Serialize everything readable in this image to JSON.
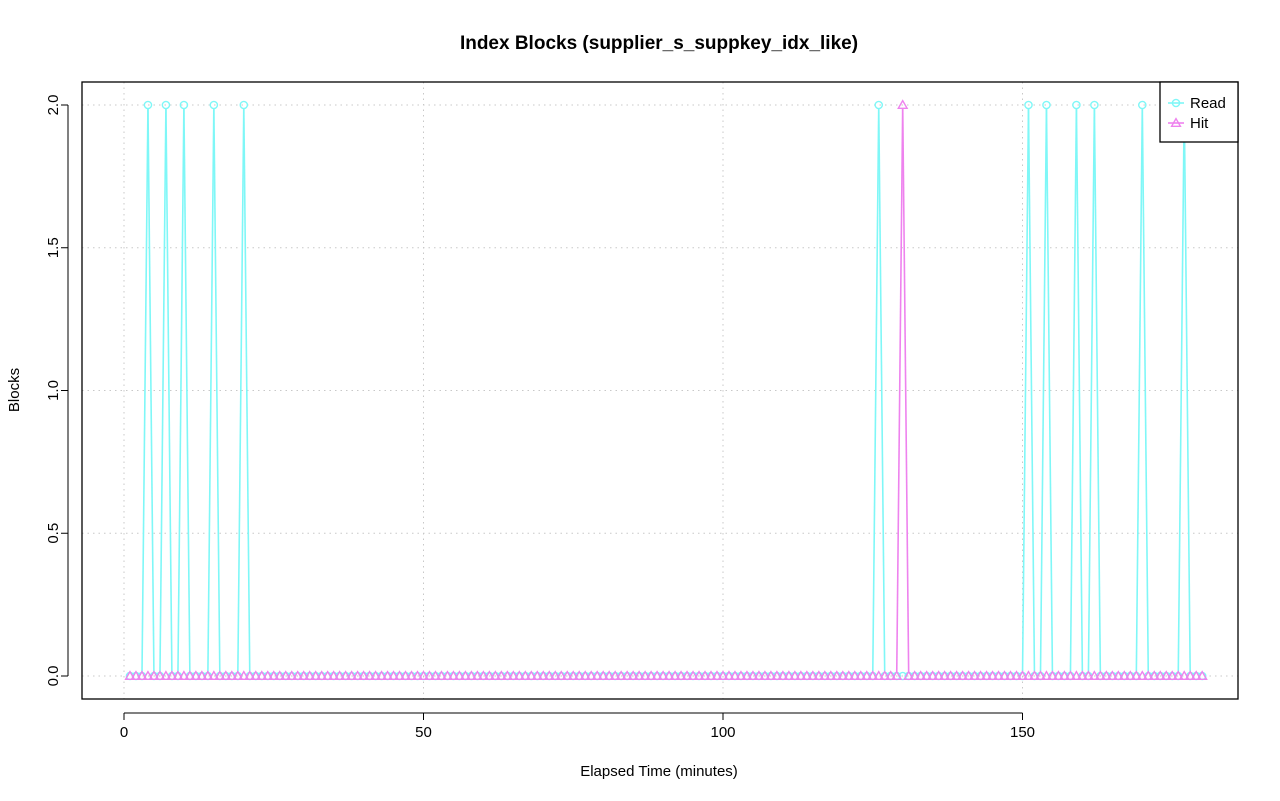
{
  "chart_data": {
    "type": "line",
    "title": "Index Blocks (supplier_s_suppkey_idx_like)",
    "xlabel": "Elapsed Time (minutes)",
    "ylabel": "Blocks",
    "xlim": [
      0,
      180
    ],
    "ylim": [
      0,
      2
    ],
    "x_ticks": [
      0,
      50,
      100,
      150
    ],
    "x_tick_labels": [
      "0",
      "50",
      "100",
      "150"
    ],
    "y_ticks": [
      0,
      0.5,
      1,
      1.5,
      2
    ],
    "y_tick_labels": [
      "0.0",
      "0.5",
      "1.0",
      "1.5",
      "2.0"
    ],
    "grid": true,
    "legend_position": "top-right",
    "x_start": 1,
    "x_end": 180,
    "series": [
      {
        "name": "Read",
        "color": "#7ff7f7",
        "marker": "circle",
        "default_value": 0,
        "peaks": [
          {
            "x": 4,
            "y": 2
          },
          {
            "x": 7,
            "y": 2
          },
          {
            "x": 10,
            "y": 2
          },
          {
            "x": 15,
            "y": 2
          },
          {
            "x": 20,
            "y": 2
          },
          {
            "x": 126,
            "y": 2
          },
          {
            "x": 151,
            "y": 2
          },
          {
            "x": 154,
            "y": 2
          },
          {
            "x": 159,
            "y": 2
          },
          {
            "x": 162,
            "y": 2
          },
          {
            "x": 170,
            "y": 2
          },
          {
            "x": 177,
            "y": 2
          }
        ]
      },
      {
        "name": "Hit",
        "color": "#ee82ee",
        "marker": "triangle",
        "default_value": 0,
        "peaks": [
          {
            "x": 130,
            "y": 2
          }
        ]
      }
    ]
  }
}
